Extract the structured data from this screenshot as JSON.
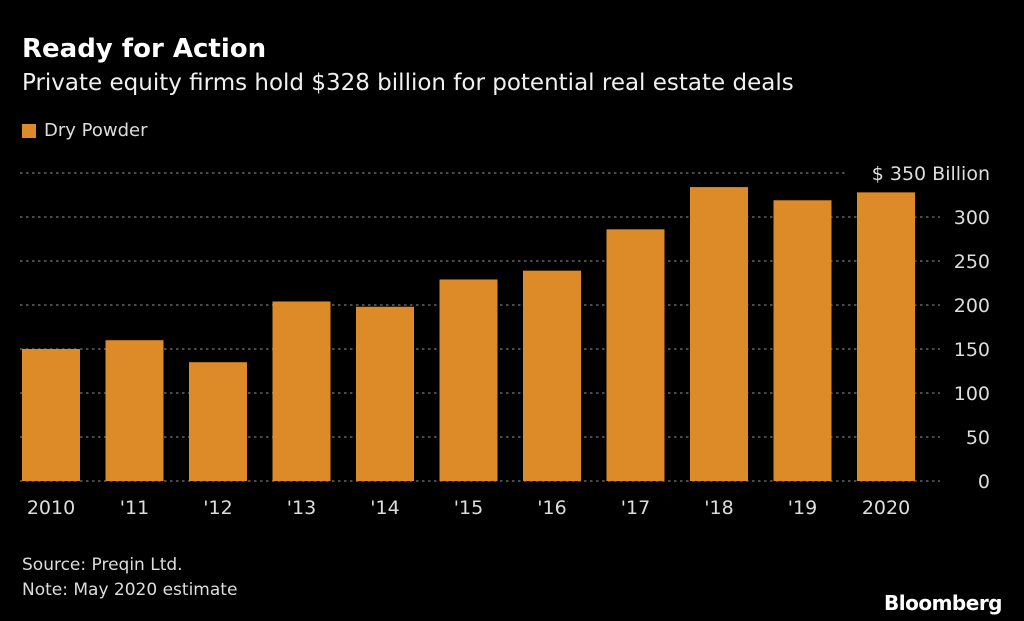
{
  "title": "Ready for Action",
  "subtitle": "Private equity firms hold $328 billion for potential real estate deals",
  "source": "Source: Preqin Ltd.",
  "note": "Note: May 2020 estimate",
  "logo": "Bloomberg",
  "chart_data": {
    "type": "bar",
    "categories": [
      "2010",
      "'11",
      "'12",
      "'13",
      "'14",
      "'15",
      "'16",
      "'17",
      "'18",
      "'19",
      "2020"
    ],
    "series": [
      {
        "name": "Dry Powder",
        "values": [
          150,
          160,
          135,
          204,
          198,
          229,
          239,
          286,
          334,
          319,
          328
        ],
        "color": "#dd8a28"
      }
    ],
    "ylim": [
      0,
      350
    ],
    "yticks": [
      0,
      50,
      100,
      150,
      200,
      250,
      300,
      350
    ],
    "ytick_labels": [
      "0",
      "50",
      "100",
      "150",
      "200",
      "250",
      "300",
      "$ 350  Billion"
    ],
    "grid": true,
    "legend": "top-left",
    "background": "#000000"
  }
}
